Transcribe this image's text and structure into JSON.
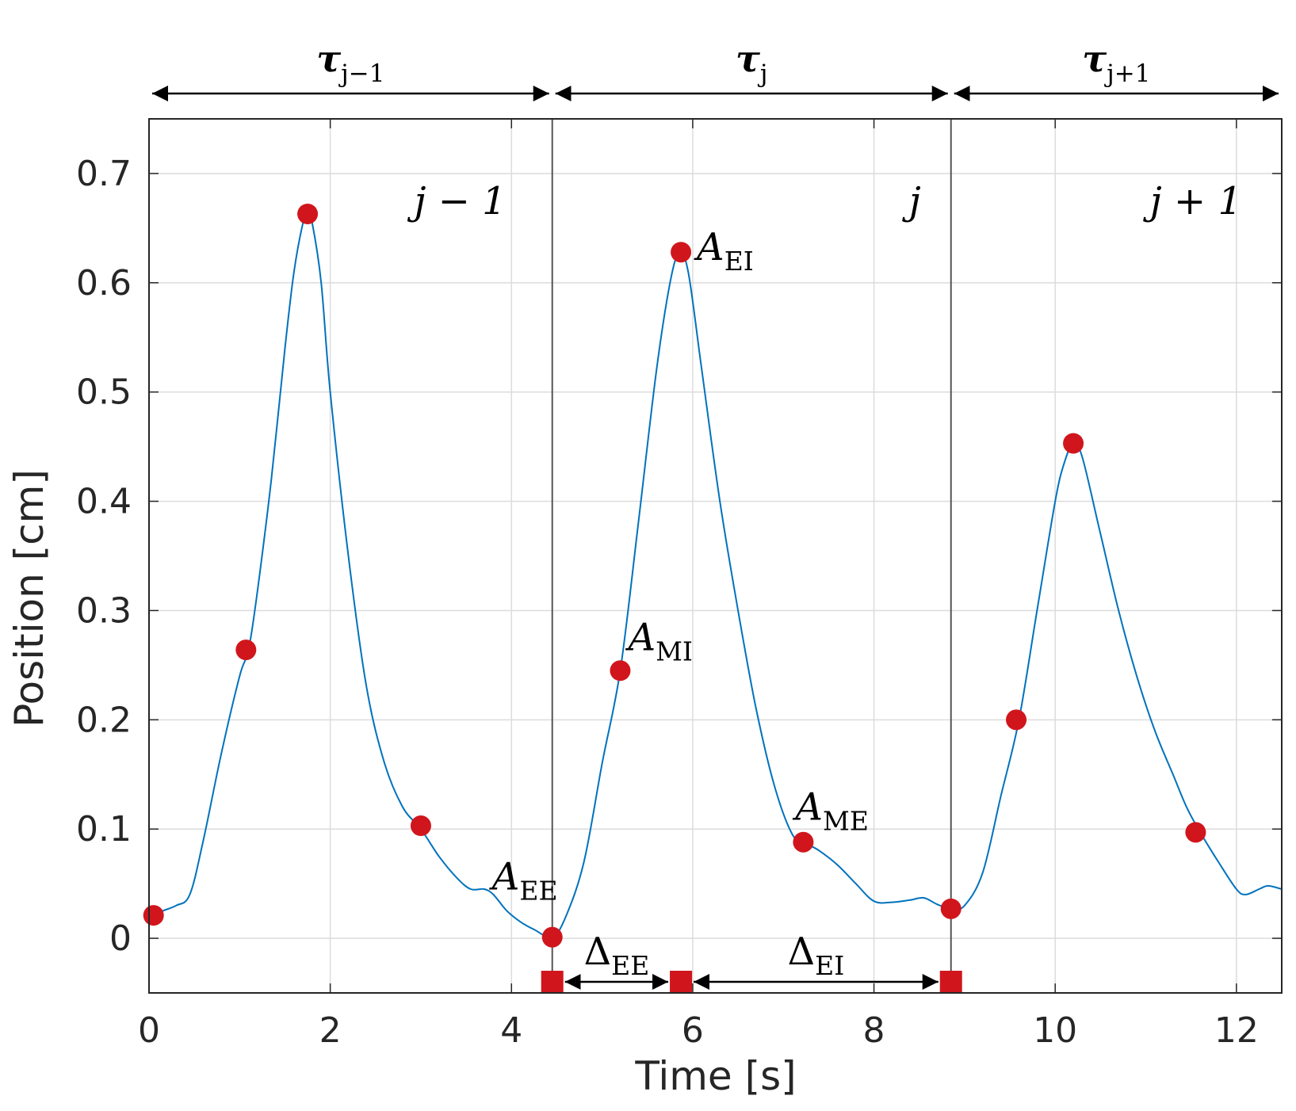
{
  "chart_data": {
    "type": "line",
    "xlabel": "Time [s]",
    "ylabel": "Position [cm]",
    "xlim": [
      0,
      12.5
    ],
    "ylim": [
      -0.05,
      0.75
    ],
    "x_ticks": [
      0,
      2,
      4,
      6,
      8,
      10,
      12
    ],
    "y_ticks": [
      0,
      0.1,
      0.2,
      0.3,
      0.4,
      0.5,
      0.6,
      0.7
    ],
    "x_tick_labels": [
      "0",
      "2",
      "4",
      "6",
      "8",
      "10",
      "12"
    ],
    "y_tick_labels": [
      "0",
      "0.1",
      "0.2",
      "0.3",
      "0.4",
      "0.5",
      "0.6",
      "0.7"
    ],
    "grid": true,
    "line_color": "#0072bd",
    "marker_color": "#d0161c",
    "series": [
      {
        "x": [
          0.05,
          0.15,
          0.3,
          0.45,
          0.6,
          0.8,
          1.0,
          1.1,
          1.2,
          1.35,
          1.5,
          1.6,
          1.7,
          1.75,
          1.8,
          1.9,
          2.0,
          2.2,
          2.4,
          2.6,
          2.8,
          3.0,
          3.2,
          3.4,
          3.55,
          3.7,
          3.8,
          3.95,
          4.1,
          4.25,
          4.45,
          4.6,
          4.8,
          5.0,
          5.2,
          5.4,
          5.6,
          5.75,
          5.85,
          5.95,
          6.1,
          6.3,
          6.5,
          6.7,
          6.9,
          7.1,
          7.25,
          7.4,
          7.6,
          7.8,
          8.0,
          8.2,
          8.4,
          8.55,
          8.7,
          8.85,
          9.0,
          9.2,
          9.4,
          9.6,
          9.8,
          10.0,
          10.1,
          10.2,
          10.3,
          10.5,
          10.7,
          10.9,
          11.1,
          11.3,
          11.45,
          11.6,
          11.8,
          12.0,
          12.1,
          12.25,
          12.35,
          12.5
        ],
        "y": [
          0.02,
          0.025,
          0.03,
          0.04,
          0.09,
          0.17,
          0.24,
          0.265,
          0.32,
          0.42,
          0.54,
          0.61,
          0.655,
          0.663,
          0.655,
          0.6,
          0.5,
          0.35,
          0.23,
          0.16,
          0.12,
          0.1,
          0.075,
          0.055,
          0.045,
          0.045,
          0.04,
          0.025,
          0.015,
          0.008,
          0.001,
          0.02,
          0.07,
          0.16,
          0.245,
          0.38,
          0.52,
          0.6,
          0.627,
          0.61,
          0.52,
          0.4,
          0.3,
          0.21,
          0.14,
          0.095,
          0.087,
          0.08,
          0.067,
          0.05,
          0.034,
          0.033,
          0.035,
          0.037,
          0.031,
          0.027,
          0.03,
          0.06,
          0.13,
          0.2,
          0.3,
          0.4,
          0.435,
          0.453,
          0.44,
          0.37,
          0.3,
          0.24,
          0.19,
          0.15,
          0.12,
          0.097,
          0.07,
          0.045,
          0.04,
          0.045,
          0.048,
          0.045
        ]
      }
    ],
    "markers": {
      "x": [
        0.05,
        1.07,
        1.75,
        3.0,
        4.45,
        5.2,
        5.87,
        7.22,
        8.85,
        9.57,
        10.2,
        11.55
      ],
      "y": [
        0.021,
        0.264,
        0.663,
        0.103,
        0.001,
        0.245,
        0.628,
        0.088,
        0.027,
        0.2,
        0.453,
        0.097
      ]
    },
    "square_markers": {
      "x": [
        4.45,
        5.87,
        8.85
      ]
    },
    "cycle_boundaries": [
      4.45,
      8.85
    ],
    "cycle_labels": [
      "j − 1",
      "j",
      "j + 1"
    ],
    "tau_labels": {
      "symbol": "τ",
      "subscripts": [
        "j−1",
        "j",
        "j+1"
      ]
    },
    "annotations": {
      "a_ei": {
        "base": "A",
        "sub": "EI",
        "x": 5.87,
        "y": 0.628
      },
      "a_mi": {
        "base": "A",
        "sub": "MI",
        "x": 5.2,
        "y": 0.245
      },
      "a_me": {
        "base": "A",
        "sub": "ME",
        "x": 7.22,
        "y": 0.088
      },
      "a_ee": {
        "base": "A",
        "sub": "EE",
        "x": 4.45,
        "y": 0.001
      },
      "delta_ee": {
        "base": "Δ",
        "sub": "EE",
        "from": 4.45,
        "to": 5.87
      },
      "delta_ei": {
        "base": "Δ",
        "sub": "EI",
        "from": 5.87,
        "to": 8.85
      }
    }
  }
}
